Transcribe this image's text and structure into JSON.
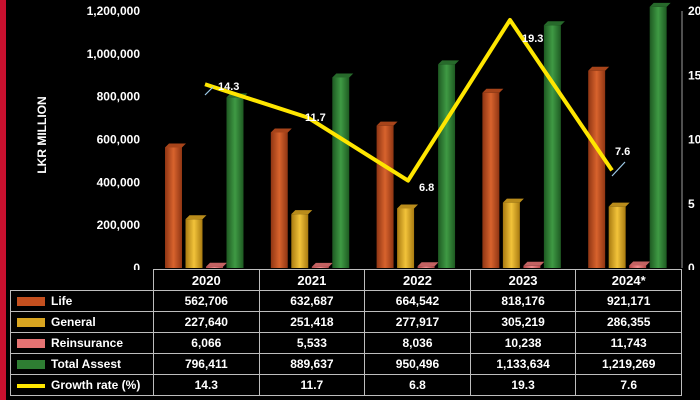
{
  "chart_data": {
    "type": "bar",
    "categories": [
      "2020",
      "2021",
      "2022",
      "2023",
      "2024*"
    ],
    "ylabel": "LKR MILLION",
    "ylim": [
      0,
      1200000
    ],
    "y_ticks": [
      "0",
      "200,000",
      "400,000",
      "600,000",
      "800,000",
      "1,000,000",
      "1,200,000"
    ],
    "y_tick_values": [
      0,
      200000,
      400000,
      600000,
      800000,
      1000000,
      1200000
    ],
    "y2lim": [
      0,
      20
    ],
    "y2_ticks": [
      "0",
      "5",
      "10",
      "15",
      "20"
    ],
    "y2_tick_values": [
      0,
      5,
      10,
      15,
      20
    ],
    "series": [
      {
        "name": "Life",
        "type": "bar",
        "color": "#c4501f",
        "values": [
          562706,
          632687,
          664542,
          818176,
          921171
        ],
        "labels": [
          "562,706",
          "632,687",
          "664,542",
          "818,176",
          "921,171"
        ]
      },
      {
        "name": "General",
        "type": "bar",
        "color": "#d9a520",
        "values": [
          227640,
          251418,
          277917,
          305219,
          286355
        ],
        "labels": [
          "227,640",
          "251,418",
          "277,917",
          "305,219",
          "286,355"
        ]
      },
      {
        "name": "Reinsurance",
        "type": "bar",
        "color": "#e57373",
        "values": [
          6066,
          5533,
          8036,
          10238,
          11743
        ],
        "labels": [
          "6,066",
          "5,533",
          "8,036",
          "10,238",
          "11,743"
        ]
      },
      {
        "name": "Total Assest",
        "type": "bar",
        "color": "#2e7d32",
        "values": [
          796411,
          889637,
          950496,
          1133634,
          1219269
        ],
        "labels": [
          "796,411",
          "889,637",
          "950,496",
          "1,133,634",
          "1,219,269"
        ]
      },
      {
        "name": "Growth rate (%)",
        "type": "line",
        "axis": "secondary",
        "color": "#ffe600",
        "values": [
          14.3,
          11.7,
          6.8,
          19.3,
          7.6
        ],
        "labels": [
          "14.3",
          "11.7",
          "6.8",
          "19.3",
          "7.6"
        ]
      }
    ],
    "grid": false,
    "legend": "table-below"
  }
}
